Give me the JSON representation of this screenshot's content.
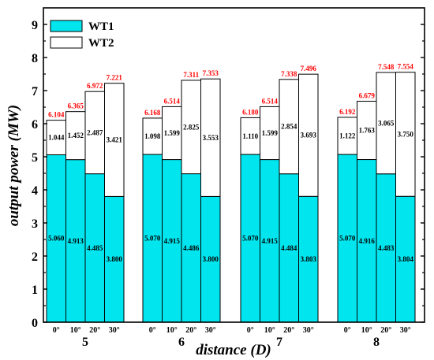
{
  "chart_data": {
    "type": "bar",
    "stacked": true,
    "xlabel": "distance (D)",
    "ylabel": "output power (MW)",
    "ylim": [
      0,
      9.5
    ],
    "yticks": [
      0,
      1,
      2,
      3,
      4,
      5,
      6,
      7,
      8,
      9
    ],
    "grid": false,
    "legend_position": "top-left",
    "groups": [
      "5",
      "6",
      "7",
      "8"
    ],
    "angles": [
      "0°",
      "10°",
      "20°",
      "30°"
    ],
    "series": [
      {
        "name": "WT1",
        "color": "#00E5EE",
        "values": [
          [
            5.06,
            4.913,
            4.485,
            3.8
          ],
          [
            5.07,
            4.915,
            4.486,
            3.8
          ],
          [
            5.07,
            4.915,
            4.484,
            3.803
          ],
          [
            5.07,
            4.916,
            4.483,
            3.804
          ]
        ],
        "labels": [
          [
            "5.060",
            "4.913",
            "4.485",
            "3.800"
          ],
          [
            "5.070",
            "4.915",
            "4.486",
            "3.800"
          ],
          [
            "5.070",
            "4.915",
            "4.484",
            "3.803"
          ],
          [
            "5.070",
            "4.916",
            "4.483",
            "3.804"
          ]
        ]
      },
      {
        "name": "WT2",
        "color": "#FFFFFF",
        "values": [
          [
            1.044,
            1.452,
            2.487,
            3.421
          ],
          [
            1.098,
            1.599,
            2.825,
            3.553
          ],
          [
            1.11,
            1.599,
            2.854,
            3.693
          ],
          [
            1.122,
            1.763,
            3.065,
            3.75
          ]
        ],
        "labels": [
          [
            "1.044",
            "1.452",
            "2.487",
            "3.421"
          ],
          [
            "1.098",
            "1.599",
            "2.825",
            "3.553"
          ],
          [
            "1.110",
            "1.599",
            "2.854",
            "3.693"
          ],
          [
            "1.122",
            "1.763",
            "3.065",
            "3.750"
          ]
        ]
      }
    ],
    "totals": [
      [
        "6.104",
        "6.365",
        "6.972",
        "7.221"
      ],
      [
        "6.168",
        "6.514",
        "7.311",
        "7.353"
      ],
      [
        "6.180",
        "6.514",
        "7.338",
        "7.496"
      ],
      [
        "6.192",
        "6.679",
        "7.548",
        "7.554"
      ]
    ],
    "total_label_color": "#FF0000"
  }
}
